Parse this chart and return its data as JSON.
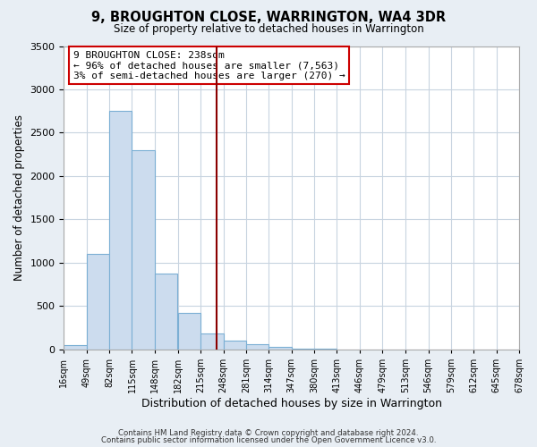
{
  "title": "9, BROUGHTON CLOSE, WARRINGTON, WA4 3DR",
  "subtitle": "Size of property relative to detached houses in Warrington",
  "xlabel": "Distribution of detached houses by size in Warrington",
  "ylabel": "Number of detached properties",
  "bar_left_edges": [
    16,
    49,
    82,
    115,
    148,
    182,
    215,
    248,
    281,
    314,
    347,
    380,
    413,
    446,
    479,
    513,
    546,
    579,
    612,
    645
  ],
  "bar_heights": [
    50,
    1100,
    2750,
    2300,
    875,
    420,
    185,
    100,
    55,
    30,
    10,
    5,
    0,
    0,
    0,
    0,
    0,
    0,
    0,
    0
  ],
  "bin_width": 33,
  "bar_color": "#ccdcee",
  "bar_edge_color": "#7bafd4",
  "tick_labels": [
    "16sqm",
    "49sqm",
    "82sqm",
    "115sqm",
    "148sqm",
    "182sqm",
    "215sqm",
    "248sqm",
    "281sqm",
    "314sqm",
    "347sqm",
    "380sqm",
    "413sqm",
    "446sqm",
    "479sqm",
    "513sqm",
    "546sqm",
    "579sqm",
    "612sqm",
    "645sqm",
    "678sqm"
  ],
  "vline_x": 238,
  "vline_color": "#8b0000",
  "ylim": [
    0,
    3500
  ],
  "yticks": [
    0,
    500,
    1000,
    1500,
    2000,
    2500,
    3000,
    3500
  ],
  "annotation_title": "9 BROUGHTON CLOSE: 238sqm",
  "annotation_line1": "← 96% of detached houses are smaller (7,563)",
  "annotation_line2": "3% of semi-detached houses are larger (270) →",
  "footer_line1": "Contains HM Land Registry data © Crown copyright and database right 2024.",
  "footer_line2": "Contains public sector information licensed under the Open Government Licence v3.0.",
  "background_color": "#e8eef4",
  "plot_bg_color": "#ffffff",
  "grid_color": "#c8d4e0"
}
